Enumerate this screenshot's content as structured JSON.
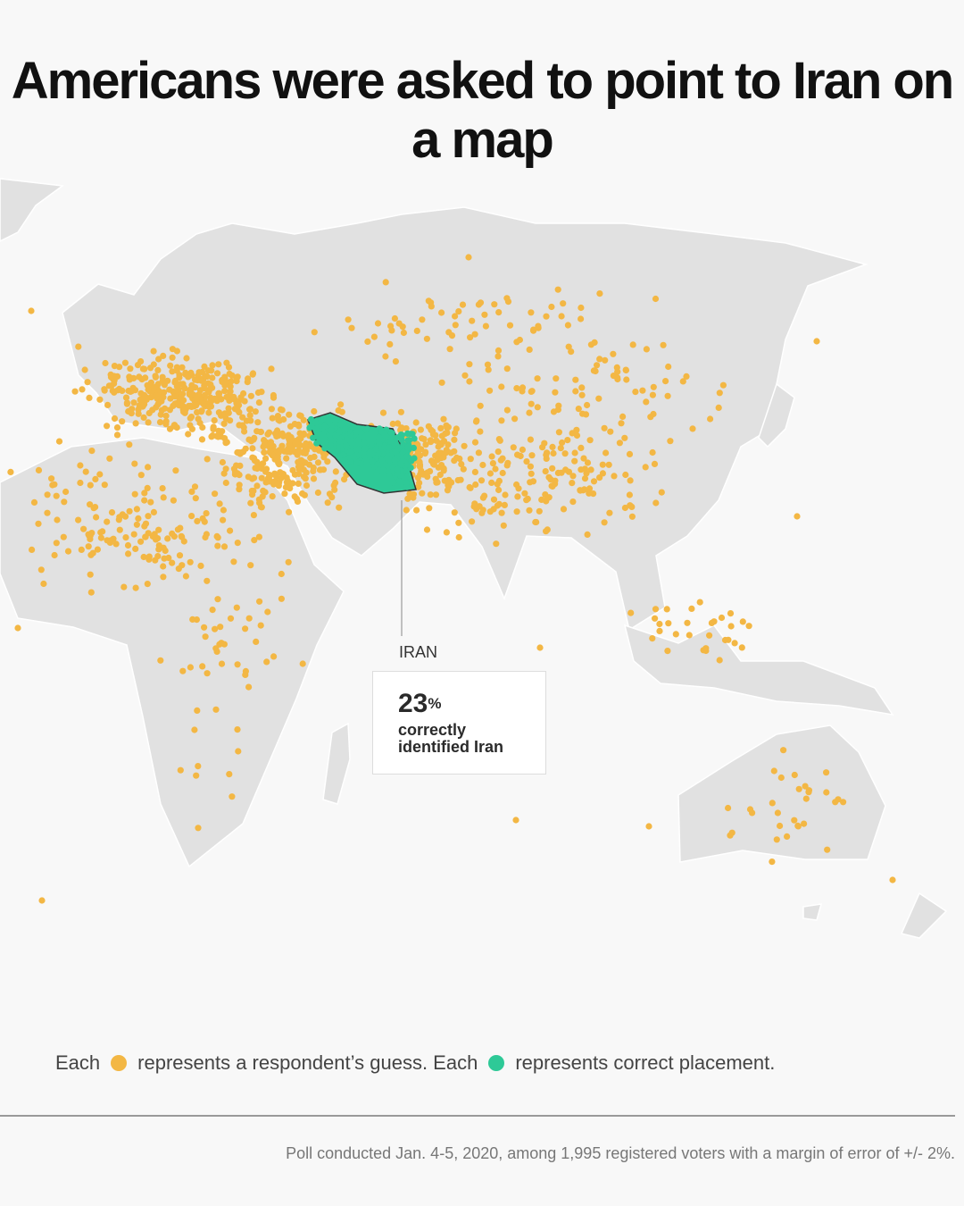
{
  "title": "Americans were asked to point to Iran on a map",
  "callout": {
    "country_label": "IRAN",
    "percent": "23",
    "percent_sign": "%",
    "description_line1": "correctly",
    "description_line2": "identified Iran"
  },
  "legend": {
    "part1": "Each",
    "part2": "represents a respondent’s guess. Each",
    "part3": "represents correct placement."
  },
  "footer": "Poll conducted Jan. 4-5, 2020, among 1,995 registered voters with a margin of error of +/- 2%.",
  "colors": {
    "guess": "#f3b744",
    "correct": "#2ec997",
    "land": "#e1e1e1",
    "background": "#f8f8f8"
  },
  "stats": {
    "correct_share_percent": 23,
    "respondents": 1995
  }
}
